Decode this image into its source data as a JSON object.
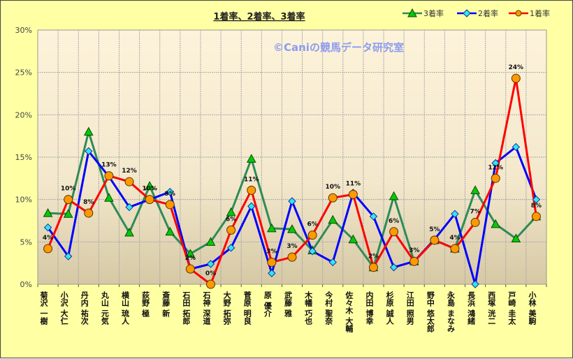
{
  "chart_data": {
    "type": "line",
    "title": "1着率、2着率、3着率",
    "watermark": "©Caniの競馬データ研究室",
    "xlabel": "",
    "ylabel": "",
    "ylim": [
      0,
      30
    ],
    "yticks": [
      "0%",
      "5%",
      "10%",
      "15%",
      "20%",
      "25%",
      "30%"
    ],
    "grid": true,
    "legend_position": "top-right",
    "categories": [
      "菊沢 一樹",
      "小沢 大仁",
      "丹内 祐次",
      "丸山 元気",
      "横山 琉人",
      "荻野 極",
      "斎藤 新",
      "石田 拓郎",
      "石神 深道",
      "大野 拓弥",
      "菅原 明良",
      "原 優介",
      "武藤 雅",
      "木幡 巧也",
      "今村 聖奈",
      "佐々木 大輔",
      "内田 博幸",
      "杉原 誠人",
      "江田 照男",
      "野中 悠太郎",
      "永島 まなみ",
      "長浜 鴻緒",
      "西塚 洸二",
      "戸崎 圭太",
      "小林 美駒"
    ],
    "series": [
      {
        "name": "3着率",
        "color": "#2E8B57",
        "marker": "triangle",
        "marker_color": "#00CC00",
        "values": [
          8.4,
          8.3,
          18.0,
          10.2,
          6.1,
          11.6,
          6.2,
          3.6,
          5.0,
          8.5,
          14.8,
          6.6,
          6.5,
          4.0,
          7.6,
          5.3,
          2.0,
          10.4,
          2.7,
          5.2,
          4.2,
          11.1,
          7.1,
          5.4,
          8.0
        ]
      },
      {
        "name": "2着率",
        "color": "#0000FF",
        "marker": "diamond",
        "marker_color": "#33E6F0",
        "values": [
          6.7,
          3.3,
          15.7,
          12.7,
          9.1,
          10.0,
          10.9,
          1.8,
          2.4,
          4.3,
          9.2,
          1.3,
          9.8,
          3.9,
          2.6,
          10.8,
          8.0,
          2.0,
          2.7,
          5.3,
          8.3,
          0.0,
          14.3,
          16.2,
          10.0
        ]
      },
      {
        "name": "1着率",
        "color": "#FF0000",
        "marker": "circle",
        "marker_color": "#FF9900",
        "values": [
          4.2,
          10.0,
          8.4,
          12.8,
          12.1,
          10.0,
          9.4,
          1.8,
          0.0,
          6.4,
          11.1,
          2.6,
          3.2,
          5.8,
          10.2,
          10.6,
          2.0,
          6.2,
          2.7,
          5.2,
          4.2,
          7.3,
          12.5,
          24.3,
          8.0
        ],
        "data_labels": [
          "4%",
          "10%",
          "8%",
          "13%",
          "12%",
          "10%",
          "9%",
          "2%",
          "0%",
          "6%",
          "11%",
          "3%",
          "3%",
          "6%",
          "10%",
          "11%",
          "2%",
          "6%",
          "3%",
          "5%",
          "4%",
          "7%",
          "12%",
          "24%",
          "8%"
        ]
      }
    ]
  }
}
